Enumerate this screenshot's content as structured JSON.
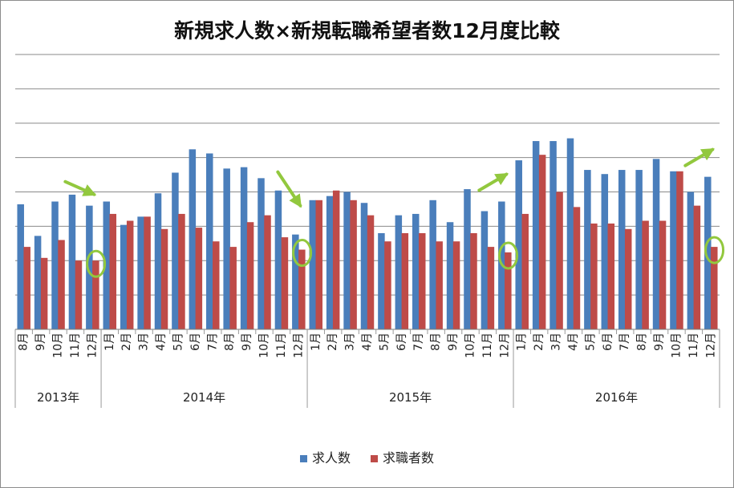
{
  "chart_data": {
    "type": "bar",
    "title": "新規求人数×新規転職希望者数12月度比較",
    "xlabel": "",
    "ylabel": "",
    "y_axis_labels_shown": false,
    "grid": true,
    "legend_position": "bottom",
    "colors": {
      "求人数": "#4a7ebb",
      "求職者数": "#be4b48",
      "annotation": "#92c83e"
    },
    "categories": [
      "8月",
      "9月",
      "10月",
      "11月",
      "12月",
      "1月",
      "2月",
      "3月",
      "4月",
      "5月",
      "6月",
      "7月",
      "8月",
      "9月",
      "10月",
      "11月",
      "12月",
      "1月",
      "2月",
      "3月",
      "4月",
      "5月",
      "6月",
      "7月",
      "8月",
      "9月",
      "10月",
      "11月",
      "12月",
      "1月",
      "2月",
      "3月",
      "4月",
      "5月",
      "6月",
      "7月",
      "8月",
      "9月",
      "10月",
      "11月",
      "12月"
    ],
    "year_groups": [
      {
        "label": "2013年",
        "count": 5
      },
      {
        "label": "2014年",
        "count": 12
      },
      {
        "label": "2015年",
        "count": 12
      },
      {
        "label": "2016年",
        "count": 12
      }
    ],
    "series": [
      {
        "name": "求人数",
        "values": [
          4.55,
          3.4,
          4.65,
          4.9,
          4.5,
          4.65,
          3.8,
          4.1,
          4.95,
          5.7,
          6.55,
          6.4,
          5.85,
          5.9,
          5.5,
          5.05,
          3.45,
          4.7,
          4.85,
          5.0,
          4.6,
          3.5,
          4.15,
          4.2,
          4.7,
          3.9,
          5.1,
          4.3,
          4.65,
          6.15,
          6.85,
          6.85,
          6.95,
          5.8,
          5.65,
          5.8,
          5.8,
          6.2,
          5.75,
          5.0,
          5.55
        ]
      },
      {
        "name": "求職者数",
        "values": [
          3.0,
          2.6,
          3.25,
          2.5,
          2.5,
          4.2,
          3.95,
          4.1,
          3.65,
          4.2,
          3.7,
          3.2,
          3.0,
          3.9,
          4.15,
          3.35,
          2.9,
          4.7,
          5.05,
          4.7,
          4.15,
          3.2,
          3.5,
          3.5,
          3.2,
          3.2,
          3.5,
          3.0,
          2.8,
          4.2,
          6.35,
          5.0,
          4.45,
          3.85,
          3.85,
          3.65,
          3.95,
          3.95,
          5.75,
          4.5,
          3.0
        ]
      }
    ],
    "ylim": [
      0,
      10
    ]
  }
}
